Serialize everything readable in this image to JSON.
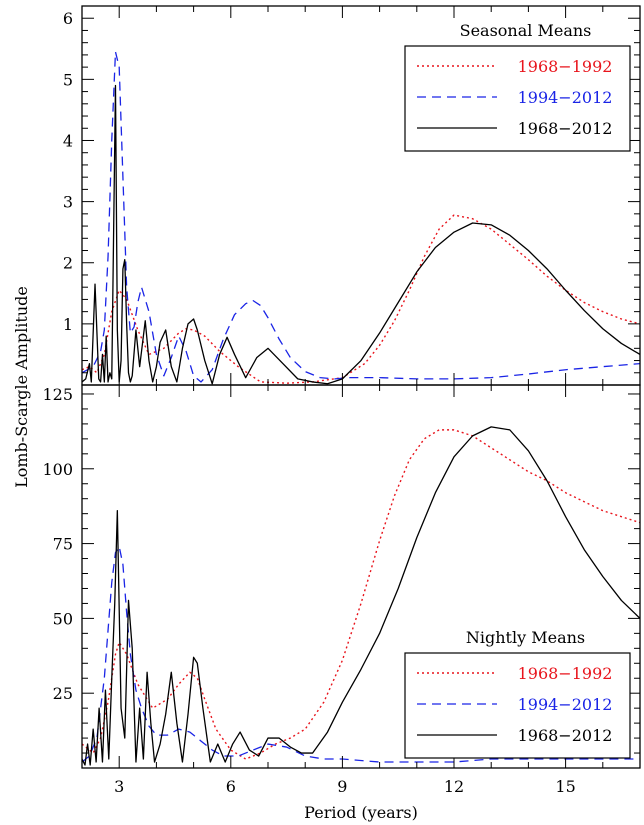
{
  "figure": {
    "ylabel": "Lomb-Scargle Amplitude",
    "xlabel": "Period (years)"
  },
  "chart_data": [
    {
      "type": "line",
      "panel": "top",
      "legend_title": "Seasonal Means",
      "legend_position": "top-right",
      "xlim": [
        2.0,
        17.0
      ],
      "ylim": [
        0.0,
        6.2
      ],
      "xticks": [
        3,
        6,
        9,
        12,
        15
      ],
      "yticks": [
        1,
        2,
        3,
        4,
        5,
        6
      ],
      "ytick_labels": [
        "1",
        "2",
        "3",
        "4",
        "5",
        "6"
      ],
      "series": [
        {
          "name": "1968−1992",
          "color": "#e8141c",
          "dash": "dotted",
          "x": [
            2.0,
            2.2,
            2.4,
            2.6,
            2.8,
            3.0,
            3.2,
            3.5,
            3.8,
            4.2,
            4.6,
            4.8,
            5.0,
            5.3,
            5.7,
            6.2,
            6.8,
            7.5,
            8.2,
            9.0,
            9.6,
            10.0,
            10.4,
            10.8,
            11.2,
            11.6,
            12.0,
            12.5,
            13.0,
            13.5,
            14.0,
            14.5,
            15.0,
            15.5,
            16.0,
            16.5,
            17.0
          ],
          "y": [
            0.25,
            0.3,
            0.2,
            0.5,
            1.2,
            1.55,
            1.4,
            0.9,
            0.5,
            0.6,
            0.85,
            0.92,
            0.9,
            0.8,
            0.55,
            0.3,
            0.05,
            0.03,
            0.05,
            0.12,
            0.35,
            0.65,
            1.05,
            1.55,
            2.1,
            2.55,
            2.78,
            2.72,
            2.55,
            2.3,
            2.05,
            1.78,
            1.55,
            1.35,
            1.2,
            1.08,
            1.0
          ]
        },
        {
          "name": "1994−2012",
          "color": "#1a24e6",
          "dash": "dashed",
          "x": [
            2.0,
            2.3,
            2.5,
            2.6,
            2.7,
            2.8,
            2.9,
            3.0,
            3.1,
            3.2,
            3.3,
            3.4,
            3.5,
            3.6,
            3.8,
            4.0,
            4.2,
            4.4,
            4.6,
            4.8,
            5.0,
            5.2,
            5.5,
            5.8,
            6.1,
            6.4,
            6.6,
            6.8,
            7.0,
            7.3,
            7.6,
            8.0,
            8.4,
            8.8,
            9.2,
            10.0,
            11.0,
            12.0,
            13.0,
            14.0,
            15.0,
            16.0,
            17.0
          ],
          "y": [
            0.2,
            0.3,
            0.55,
            0.9,
            2.1,
            4.0,
            5.45,
            5.2,
            3.4,
            1.6,
            0.85,
            0.95,
            1.35,
            1.6,
            1.2,
            0.5,
            0.15,
            0.45,
            0.8,
            0.55,
            0.15,
            0.05,
            0.25,
            0.75,
            1.15,
            1.33,
            1.38,
            1.3,
            1.1,
            0.75,
            0.45,
            0.22,
            0.12,
            0.1,
            0.12,
            0.12,
            0.1,
            0.1,
            0.12,
            0.18,
            0.25,
            0.3,
            0.35
          ]
        },
        {
          "name": "1968−2012",
          "color": "#000000",
          "dash": "solid",
          "x": [
            2.0,
            2.1,
            2.2,
            2.25,
            2.35,
            2.45,
            2.5,
            2.55,
            2.6,
            2.65,
            2.7,
            2.75,
            2.8,
            2.85,
            2.9,
            2.95,
            3.0,
            3.05,
            3.1,
            3.15,
            3.2,
            3.25,
            3.3,
            3.35,
            3.45,
            3.55,
            3.7,
            3.8,
            3.9,
            4.0,
            4.1,
            4.25,
            4.4,
            4.55,
            4.7,
            4.85,
            5.0,
            5.1,
            5.3,
            5.5,
            5.7,
            5.9,
            6.1,
            6.4,
            6.7,
            7.0,
            7.4,
            7.8,
            8.2,
            8.6,
            9.0,
            9.5,
            10.0,
            10.5,
            11.0,
            11.5,
            12.0,
            12.5,
            13.0,
            13.5,
            14.0,
            14.5,
            15.0,
            15.5,
            16.0,
            16.5,
            17.0
          ],
          "y": [
            0.05,
            0.1,
            0.35,
            0.05,
            1.65,
            0.1,
            0.05,
            0.5,
            0.05,
            0.8,
            0.05,
            0.2,
            0.1,
            2.5,
            4.9,
            0.9,
            0.05,
            0.4,
            1.9,
            2.05,
            1.0,
            0.2,
            0.05,
            0.15,
            0.9,
            0.3,
            1.05,
            0.4,
            0.05,
            0.3,
            0.7,
            0.9,
            0.3,
            0.05,
            0.6,
            1.0,
            1.08,
            0.9,
            0.4,
            0.02,
            0.5,
            0.78,
            0.5,
            0.12,
            0.45,
            0.6,
            0.35,
            0.1,
            0.05,
            0.02,
            0.1,
            0.4,
            0.85,
            1.35,
            1.85,
            2.25,
            2.5,
            2.65,
            2.62,
            2.45,
            2.2,
            1.9,
            1.55,
            1.22,
            0.92,
            0.68,
            0.5
          ]
        }
      ]
    },
    {
      "type": "line",
      "panel": "bottom",
      "legend_title": "Nightly Means",
      "legend_position": "bottom-right",
      "xlim": [
        2.0,
        17.0
      ],
      "ylim": [
        0.0,
        128.0
      ],
      "xticks": [
        3,
        6,
        9,
        12,
        15
      ],
      "xtick_labels": [
        "3",
        "6",
        "9",
        "12",
        "15"
      ],
      "yticks": [
        25,
        50,
        75,
        100,
        125
      ],
      "ytick_labels": [
        "25",
        "50",
        "75",
        "100",
        "125"
      ],
      "series": [
        {
          "name": "1968−1992",
          "color": "#e8141c",
          "dash": "dotted",
          "x": [
            2.0,
            2.3,
            2.5,
            2.7,
            2.9,
            3.0,
            3.2,
            3.5,
            3.9,
            4.3,
            4.6,
            4.9,
            5.1,
            5.3,
            5.6,
            6.0,
            6.4,
            6.8,
            7.2,
            7.6,
            8.0,
            8.5,
            9.0,
            9.5,
            10.0,
            10.4,
            10.8,
            11.2,
            11.6,
            12.0,
            12.5,
            13.0,
            13.5,
            14.0,
            14.5,
            15.0,
            15.5,
            16.0,
            16.5,
            17.0
          ],
          "y": [
            8,
            5,
            10,
            22,
            38,
            42,
            38,
            28,
            20,
            23,
            28,
            32,
            30,
            23,
            13,
            6,
            3,
            5,
            8,
            10,
            13,
            22,
            36,
            55,
            76,
            91,
            103,
            110,
            113,
            113,
            111,
            107,
            103,
            99,
            96,
            92,
            89,
            86,
            84,
            82
          ]
        },
        {
          "name": "1994−2012",
          "color": "#1a24e6",
          "dash": "dashed",
          "x": [
            2.0,
            2.2,
            2.4,
            2.6,
            2.8,
            2.9,
            3.0,
            3.1,
            3.2,
            3.3,
            3.45,
            3.6,
            3.8,
            4.0,
            4.3,
            4.6,
            4.9,
            5.2,
            5.5,
            5.8,
            6.2,
            6.6,
            7.0,
            7.5,
            8.0,
            8.5,
            9.0,
            10.0,
            11.0,
            12.0,
            13.0,
            14.0,
            15.0,
            16.0,
            17.0
          ],
          "y": [
            2,
            4,
            10,
            30,
            62,
            72,
            74,
            68,
            52,
            38,
            26,
            20,
            14,
            11,
            11,
            13,
            12,
            9,
            6,
            4,
            4,
            6,
            8,
            7,
            4,
            3,
            3,
            2,
            2,
            2,
            3,
            3,
            3,
            3,
            3
          ]
        },
        {
          "name": "1968−2012",
          "color": "#000000",
          "dash": "solid",
          "x": [
            2.0,
            2.08,
            2.15,
            2.22,
            2.3,
            2.38,
            2.46,
            2.55,
            2.63,
            2.72,
            2.8,
            2.88,
            2.95,
            3.05,
            3.15,
            3.25,
            3.35,
            3.45,
            3.55,
            3.65,
            3.75,
            3.85,
            3.95,
            4.1,
            4.25,
            4.4,
            4.55,
            4.7,
            4.85,
            5.0,
            5.1,
            5.25,
            5.45,
            5.65,
            5.85,
            6.05,
            6.25,
            6.5,
            6.75,
            7.0,
            7.3,
            7.6,
            7.9,
            8.2,
            8.6,
            9.0,
            9.5,
            10.0,
            10.5,
            11.0,
            11.5,
            12.0,
            12.5,
            13.0,
            13.5,
            14.0,
            14.5,
            15.0,
            15.5,
            16.0,
            16.5,
            17.0
          ],
          "y": [
            3,
            1,
            8,
            1,
            13,
            2,
            20,
            2,
            26,
            3,
            30,
            55,
            86,
            20,
            10,
            56,
            40,
            2,
            20,
            3,
            32,
            15,
            2,
            8,
            18,
            32,
            15,
            2,
            18,
            37,
            35,
            20,
            2,
            8,
            2,
            8,
            12,
            6,
            4,
            10,
            10,
            7,
            5,
            5,
            12,
            22,
            33,
            45,
            60,
            77,
            92,
            104,
            111,
            114,
            113,
            106,
            96,
            84,
            73,
            64,
            56,
            50
          ]
        }
      ]
    }
  ]
}
